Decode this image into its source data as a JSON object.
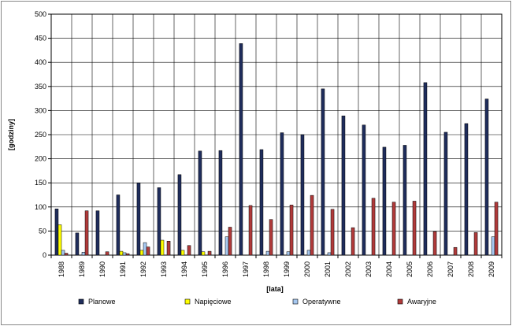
{
  "chart_data": {
    "type": "bar",
    "title": "",
    "xlabel": "[lata]",
    "ylabel": "[godziny]",
    "ylim": [
      0,
      500
    ],
    "yticks": [
      0,
      50,
      100,
      150,
      200,
      250,
      300,
      350,
      400,
      450,
      500
    ],
    "grid": true,
    "legend_position": "bottom",
    "categories": [
      "1988",
      "1989",
      "1990",
      "1991",
      "1992",
      "1993",
      "1994",
      "1995",
      "1996",
      "1997",
      "1998",
      "1999",
      "2000",
      "2001",
      "2002",
      "2003",
      "2004",
      "2005",
      "2006",
      "2007",
      "2008",
      "2009"
    ],
    "series": [
      {
        "name": "Planowe",
        "color": "#1f2d5c",
        "values": [
          96,
          46,
          92,
          125,
          150,
          140,
          167,
          216,
          217,
          439,
          219,
          254,
          250,
          345,
          289,
          270,
          224,
          228,
          358,
          255,
          273,
          324
        ]
      },
      {
        "name": "Napięciowe",
        "color": "#ffff00",
        "values": [
          63,
          0,
          0,
          8,
          10,
          31,
          10,
          7,
          0,
          0,
          0,
          0,
          0,
          0,
          0,
          0,
          0,
          0,
          0,
          0,
          0,
          0
        ]
      },
      {
        "name": "Operatywne",
        "color": "#a6c8f0",
        "values": [
          10,
          6,
          0,
          5,
          26,
          0,
          0,
          0,
          38,
          0,
          8,
          7,
          10,
          5,
          0,
          0,
          0,
          0,
          0,
          0,
          0,
          38
        ]
      },
      {
        "name": "Awaryjne",
        "color": "#b03a3a",
        "values": [
          4,
          92,
          7,
          3,
          17,
          29,
          20,
          8,
          58,
          103,
          74,
          104,
          124,
          95,
          57,
          118,
          110,
          112,
          49,
          16,
          47,
          110
        ]
      }
    ]
  }
}
